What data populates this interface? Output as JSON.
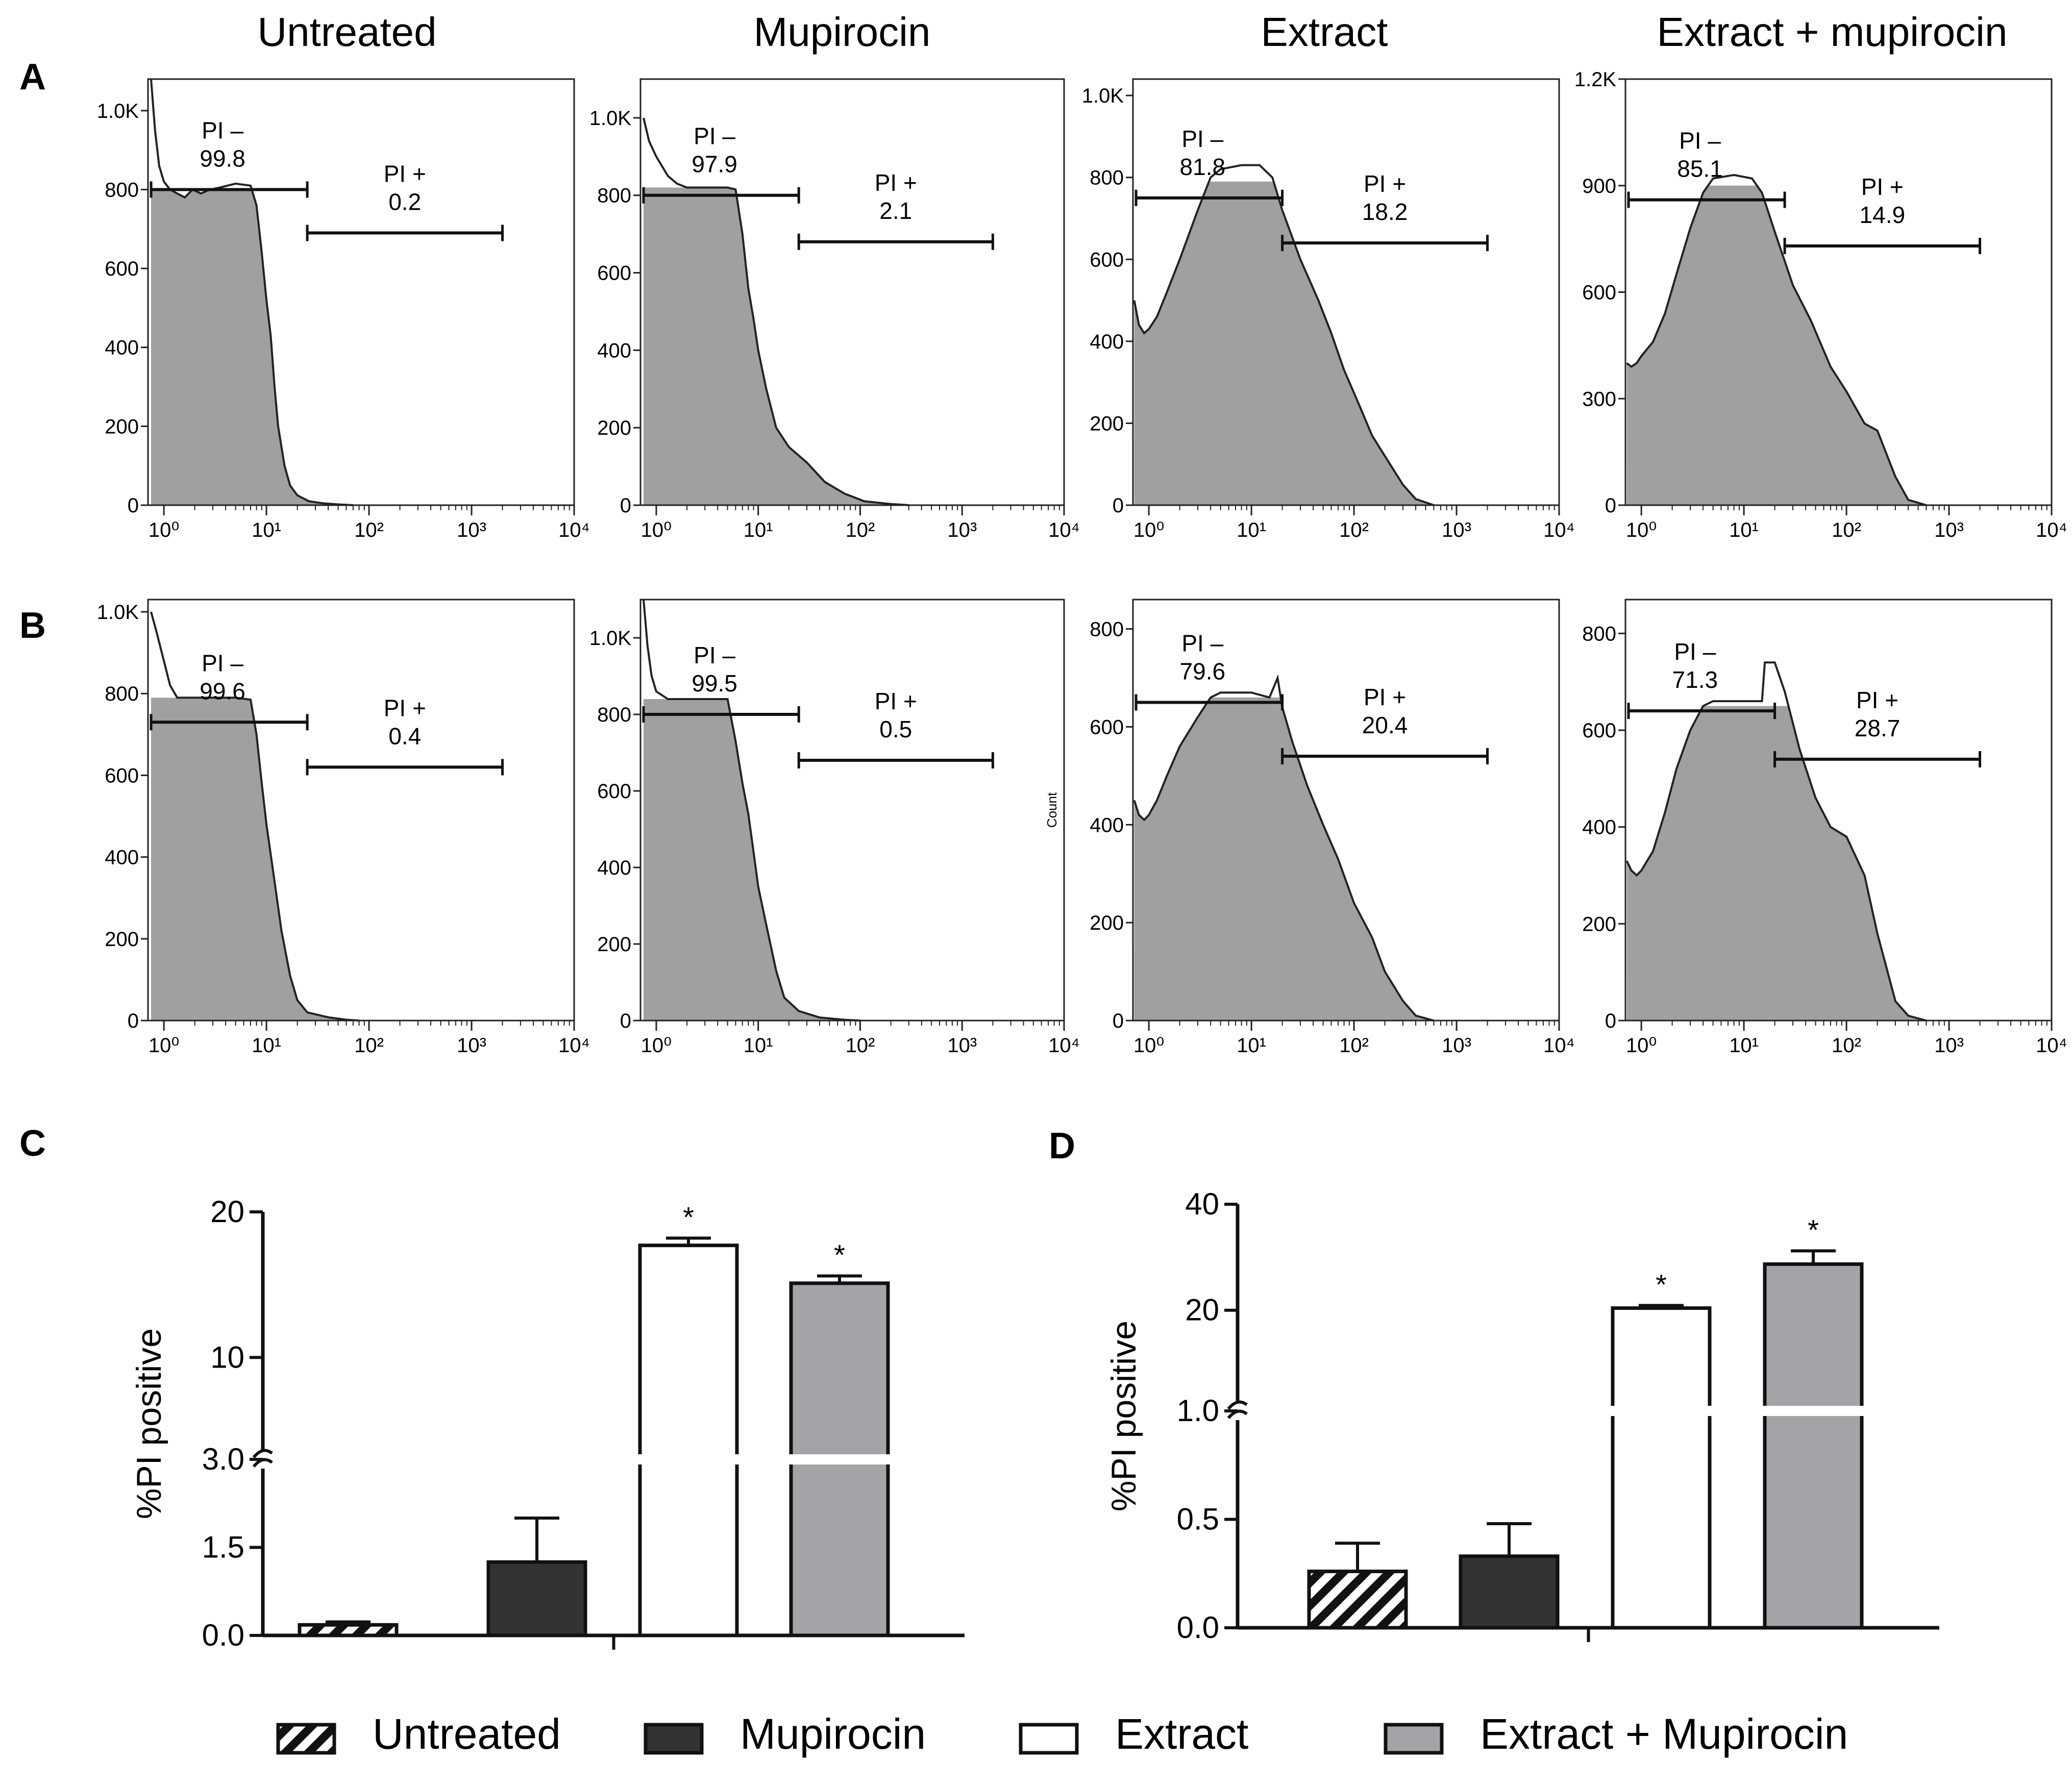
{
  "figure": {
    "panel_letters": [
      "A",
      "B",
      "C",
      "D"
    ],
    "column_titles": [
      "Untreated",
      "Mupirocin",
      "Extract",
      "Extract + mupirocin"
    ],
    "gate_labels": {
      "negative": "PI –",
      "positive": "PI +"
    },
    "count_label": "Count",
    "colors": {
      "fill": "#a0a0a0",
      "line": "#222222",
      "frame": "#222222",
      "dark_bar": "#333333",
      "gray_bar": "#a3a3a8"
    }
  },
  "chart_data": [
    {
      "id": "A",
      "type": "area",
      "row": 0,
      "col": 0,
      "title": "Untreated",
      "xscale": "log",
      "xlim": [
        0.7,
        10000
      ],
      "xticks": [
        1,
        10,
        100,
        1000,
        10000
      ],
      "xtick_labels": [
        "10⁰",
        "10¹",
        "10²",
        "10³",
        "10⁴"
      ],
      "ylim": [
        0,
        1080
      ],
      "yticks": [
        0,
        200,
        400,
        600,
        800,
        1000
      ],
      "ytick_labels": [
        "0",
        "200",
        "400",
        "600",
        "800",
        "1.0K"
      ],
      "clip": 800,
      "profile": [
        [
          0.75,
          1100
        ],
        [
          0.82,
          950
        ],
        [
          0.9,
          860
        ],
        [
          1,
          820
        ],
        [
          1.15,
          800
        ],
        [
          1.35,
          790
        ],
        [
          1.6,
          780
        ],
        [
          1.9,
          800
        ],
        [
          2.3,
          790
        ],
        [
          2.8,
          800
        ],
        [
          3.5,
          805
        ],
        [
          5,
          815
        ],
        [
          7,
          810
        ],
        [
          8,
          760
        ],
        [
          9,
          640
        ],
        [
          10,
          520
        ],
        [
          11,
          430
        ],
        [
          12,
          300
        ],
        [
          13,
          200
        ],
        [
          15,
          100
        ],
        [
          17,
          50
        ],
        [
          20,
          25
        ],
        [
          26,
          10
        ],
        [
          35,
          5
        ],
        [
          50,
          2
        ],
        [
          70,
          0
        ]
      ],
      "gate_neg": {
        "label": "PI –",
        "value": "99.8",
        "x_from": 0.75,
        "x_to": 25,
        "y": 800
      },
      "gate_pos": {
        "label": "PI +",
        "value": "0.2",
        "x_from": 25,
        "x_to": 2000,
        "y": 690
      }
    },
    {
      "id": "A",
      "type": "area",
      "row": 0,
      "col": 1,
      "title": "Mupirocin",
      "xscale": "log",
      "xlim": [
        0.7,
        10000
      ],
      "xticks": [
        1,
        10,
        100,
        1000,
        10000
      ],
      "xtick_labels": [
        "10⁰",
        "10¹",
        "10²",
        "10³",
        "10⁴"
      ],
      "ylim": [
        0,
        1100
      ],
      "yticks": [
        0,
        200,
        400,
        600,
        800,
        1000
      ],
      "ytick_labels": [
        "0",
        "200",
        "400",
        "600",
        "800",
        "1.0K"
      ],
      "clip": 820,
      "profile": [
        [
          0.75,
          1000
        ],
        [
          0.85,
          940
        ],
        [
          1,
          900
        ],
        [
          1.3,
          850
        ],
        [
          1.6,
          830
        ],
        [
          2,
          820
        ],
        [
          3,
          820
        ],
        [
          5,
          820
        ],
        [
          6,
          815
        ],
        [
          7,
          700
        ],
        [
          8,
          560
        ],
        [
          9,
          480
        ],
        [
          10,
          400
        ],
        [
          12,
          300
        ],
        [
          15,
          200
        ],
        [
          20,
          150
        ],
        [
          30,
          110
        ],
        [
          45,
          60
        ],
        [
          70,
          30
        ],
        [
          110,
          10
        ],
        [
          200,
          3
        ],
        [
          300,
          0
        ]
      ],
      "gate_neg": {
        "label": "PI –",
        "value": "97.9",
        "x_from": 0.75,
        "x_to": 25,
        "y": 800
      },
      "gate_pos": {
        "label": "PI +",
        "value": "2.1",
        "x_from": 25,
        "x_to": 2000,
        "y": 680
      }
    },
    {
      "id": "A",
      "type": "area",
      "row": 0,
      "col": 2,
      "title": "Extract",
      "xscale": "log",
      "xlim": [
        0.7,
        10000
      ],
      "xticks": [
        1,
        10,
        100,
        1000,
        10000
      ],
      "xtick_labels": [
        "10⁰",
        "10¹",
        "10²",
        "10³",
        "10⁴"
      ],
      "ylim": [
        0,
        1040
      ],
      "yticks": [
        0,
        200,
        400,
        600,
        800,
        1000
      ],
      "ytick_labels": [
        "0",
        "200",
        "400",
        "600",
        "800",
        "1.0K"
      ],
      "clip": 790,
      "profile": [
        [
          0.72,
          500
        ],
        [
          0.8,
          440
        ],
        [
          0.9,
          420
        ],
        [
          1,
          430
        ],
        [
          1.2,
          460
        ],
        [
          1.5,
          520
        ],
        [
          2,
          600
        ],
        [
          3,
          720
        ],
        [
          4,
          800
        ],
        [
          5,
          820
        ],
        [
          8,
          830
        ],
        [
          12,
          830
        ],
        [
          16,
          800
        ],
        [
          20,
          720
        ],
        [
          30,
          600
        ],
        [
          45,
          500
        ],
        [
          60,
          420
        ],
        [
          80,
          330
        ],
        [
          110,
          250
        ],
        [
          150,
          170
        ],
        [
          200,
          120
        ],
        [
          300,
          50
        ],
        [
          400,
          15
        ],
        [
          600,
          0
        ]
      ],
      "gate_neg": {
        "label": "PI –",
        "value": "81.8",
        "x_from": 0.75,
        "x_to": 20,
        "y": 750
      },
      "gate_pos": {
        "label": "PI +",
        "value": "18.2",
        "x_from": 20,
        "x_to": 2000,
        "y": 640
      }
    },
    {
      "id": "A",
      "type": "area",
      "row": 0,
      "col": 3,
      "title": "Extract + mupirocin",
      "xscale": "log",
      "xlim": [
        0.7,
        10000
      ],
      "xticks": [
        1,
        10,
        100,
        1000,
        10000
      ],
      "xtick_labels": [
        "10⁰",
        "10¹",
        "10²",
        "10³",
        "10⁴"
      ],
      "ylim": [
        0,
        1200
      ],
      "yticks": [
        0,
        300,
        600,
        900,
        1200
      ],
      "ytick_labels": [
        "0",
        "300",
        "600",
        "900",
        "1.2K"
      ],
      "clip": 900,
      "profile": [
        [
          0.72,
          400
        ],
        [
          0.8,
          390
        ],
        [
          0.9,
          400
        ],
        [
          1,
          420
        ],
        [
          1.3,
          460
        ],
        [
          1.7,
          540
        ],
        [
          2.2,
          650
        ],
        [
          3,
          780
        ],
        [
          4,
          880
        ],
        [
          5,
          920
        ],
        [
          8,
          930
        ],
        [
          12,
          920
        ],
        [
          15,
          880
        ],
        [
          20,
          770
        ],
        [
          30,
          620
        ],
        [
          45,
          520
        ],
        [
          70,
          390
        ],
        [
          100,
          320
        ],
        [
          150,
          230
        ],
        [
          200,
          210
        ],
        [
          300,
          80
        ],
        [
          400,
          15
        ],
        [
          600,
          0
        ]
      ],
      "gate_neg": {
        "label": "PI –",
        "value": "85.1",
        "x_from": 0.75,
        "x_to": 25,
        "y": 860
      },
      "gate_pos": {
        "label": "PI +",
        "value": "14.9",
        "x_from": 25,
        "x_to": 2000,
        "y": 730
      }
    },
    {
      "id": "B",
      "type": "area",
      "row": 1,
      "col": 0,
      "title": "Untreated",
      "xscale": "log",
      "xlim": [
        0.7,
        10000
      ],
      "xticks": [
        1,
        10,
        100,
        1000,
        10000
      ],
      "xtick_labels": [
        "10⁰",
        "10¹",
        "10²",
        "10³",
        "10⁴"
      ],
      "ylim": [
        0,
        1030
      ],
      "yticks": [
        0,
        200,
        400,
        600,
        800,
        1000
      ],
      "ytick_labels": [
        "0",
        "200",
        "400",
        "600",
        "800",
        "1.0K"
      ],
      "clip": 790,
      "profile": [
        [
          0.75,
          1000
        ],
        [
          0.85,
          950
        ],
        [
          1,
          880
        ],
        [
          1.15,
          820
        ],
        [
          1.35,
          790
        ],
        [
          2,
          790
        ],
        [
          5,
          790
        ],
        [
          7,
          785
        ],
        [
          8,
          700
        ],
        [
          9,
          580
        ],
        [
          10,
          480
        ],
        [
          12,
          340
        ],
        [
          14,
          220
        ],
        [
          17,
          110
        ],
        [
          20,
          50
        ],
        [
          25,
          20
        ],
        [
          40,
          8
        ],
        [
          60,
          2
        ],
        [
          80,
          0
        ]
      ],
      "gate_neg": {
        "label": "PI –",
        "value": "99.6",
        "x_from": 0.75,
        "x_to": 25,
        "y": 730
      },
      "gate_pos": {
        "label": "PI +",
        "value": "0.4",
        "x_from": 25,
        "x_to": 2000,
        "y": 620
      }
    },
    {
      "id": "B",
      "type": "area",
      "row": 1,
      "col": 1,
      "title": "Mupirocin",
      "xscale": "log",
      "xlim": [
        0.7,
        10000
      ],
      "xticks": [
        1,
        10,
        100,
        1000,
        10000
      ],
      "xtick_labels": [
        "10⁰",
        "10¹",
        "10²",
        "10³",
        "10⁴"
      ],
      "ylim": [
        0,
        1100
      ],
      "yticks": [
        0,
        200,
        400,
        600,
        800,
        1000
      ],
      "ytick_labels": [
        "0",
        "200",
        "400",
        "600",
        "800",
        "1.0K"
      ],
      "clip": 840,
      "profile": [
        [
          0.75,
          1100
        ],
        [
          0.82,
          980
        ],
        [
          0.9,
          900
        ],
        [
          1,
          860
        ],
        [
          1.3,
          840
        ],
        [
          2,
          840
        ],
        [
          4,
          840
        ],
        [
          5,
          840
        ],
        [
          6,
          730
        ],
        [
          7,
          620
        ],
        [
          8,
          540
        ],
        [
          9,
          440
        ],
        [
          10,
          350
        ],
        [
          12,
          250
        ],
        [
          15,
          130
        ],
        [
          18,
          60
        ],
        [
          25,
          25
        ],
        [
          40,
          8
        ],
        [
          70,
          2
        ],
        [
          100,
          0
        ]
      ],
      "gate_neg": {
        "label": "PI –",
        "value": "99.5",
        "x_from": 0.75,
        "x_to": 25,
        "y": 800
      },
      "gate_pos": {
        "label": "PI +",
        "value": "0.5",
        "x_from": 25,
        "x_to": 2000,
        "y": 680
      }
    },
    {
      "id": "B",
      "type": "area",
      "row": 1,
      "col": 2,
      "title": "Extract",
      "xscale": "log",
      "xlim": [
        0.7,
        10000
      ],
      "xticks": [
        1,
        10,
        100,
        1000,
        10000
      ],
      "xtick_labels": [
        "10⁰",
        "10¹",
        "10²",
        "10³",
        "10⁴"
      ],
      "ylim": [
        0,
        860
      ],
      "yticks": [
        0,
        200,
        400,
        600,
        800
      ],
      "ytick_labels": [
        "0",
        "200",
        "400",
        "600",
        "800"
      ],
      "clip": 660,
      "profile": [
        [
          0.72,
          450
        ],
        [
          0.8,
          420
        ],
        [
          0.9,
          410
        ],
        [
          1,
          420
        ],
        [
          1.2,
          450
        ],
        [
          1.5,
          500
        ],
        [
          2,
          560
        ],
        [
          3,
          620
        ],
        [
          4,
          660
        ],
        [
          5,
          670
        ],
        [
          10,
          670
        ],
        [
          15,
          660
        ],
        [
          18,
          700
        ],
        [
          20,
          640
        ],
        [
          25,
          570
        ],
        [
          35,
          480
        ],
        [
          50,
          400
        ],
        [
          70,
          330
        ],
        [
          100,
          240
        ],
        [
          150,
          170
        ],
        [
          200,
          100
        ],
        [
          300,
          40
        ],
        [
          400,
          10
        ],
        [
          600,
          0
        ]
      ],
      "gate_neg": {
        "label": "PI –",
        "value": "79.6",
        "x_from": 0.75,
        "x_to": 20,
        "y": 650
      },
      "gate_pos": {
        "label": "PI +",
        "value": "20.4",
        "x_from": 20,
        "x_to": 2000,
        "y": 540
      },
      "ylabel": "Count"
    },
    {
      "id": "B",
      "type": "area",
      "row": 1,
      "col": 3,
      "title": "Extract + mupirocin",
      "xscale": "log",
      "xlim": [
        0.7,
        10000
      ],
      "xticks": [
        1,
        10,
        100,
        1000,
        10000
      ],
      "xtick_labels": [
        "10⁰",
        "10¹",
        "10²",
        "10³",
        "10⁴"
      ],
      "ylim": [
        0,
        870
      ],
      "yticks": [
        0,
        200,
        400,
        600,
        800
      ],
      "ytick_labels": [
        "0",
        "200",
        "400",
        "600",
        "800"
      ],
      "clip": 650,
      "profile": [
        [
          0.72,
          330
        ],
        [
          0.8,
          310
        ],
        [
          0.9,
          300
        ],
        [
          1,
          310
        ],
        [
          1.3,
          350
        ],
        [
          1.7,
          430
        ],
        [
          2.2,
          520
        ],
        [
          3,
          600
        ],
        [
          4,
          650
        ],
        [
          5,
          660
        ],
        [
          10,
          660
        ],
        [
          15,
          660
        ],
        [
          16,
          740
        ],
        [
          20,
          740
        ],
        [
          25,
          680
        ],
        [
          35,
          560
        ],
        [
          50,
          460
        ],
        [
          70,
          400
        ],
        [
          100,
          380
        ],
        [
          150,
          300
        ],
        [
          200,
          180
        ],
        [
          300,
          40
        ],
        [
          400,
          10
        ],
        [
          600,
          0
        ]
      ],
      "gate_neg": {
        "label": "PI –",
        "value": "71.3",
        "x_from": 0.75,
        "x_to": 20,
        "y": 640
      },
      "gate_pos": {
        "label": "PI +",
        "value": "28.7",
        "x_from": 20,
        "x_to": 2000,
        "y": 540
      }
    },
    {
      "id": "C",
      "type": "bar",
      "ylabel": "%PI positive",
      "categories": [
        "Untreated",
        "Mupirocin",
        "Extract",
        "Extract + Mupirocin"
      ],
      "values": [
        0.18,
        1.25,
        17.7,
        15.1
      ],
      "errors": [
        0.05,
        0.75,
        0.5,
        0.5
      ],
      "significant": [
        false,
        false,
        true,
        true
      ],
      "marker": "*",
      "axis_break": {
        "lower": [
          0,
          3.0
        ],
        "upper": [
          3.0,
          20
        ]
      },
      "yticks": [
        0.0,
        1.5,
        3.0,
        10,
        20
      ],
      "ytick_labels": [
        "0.0",
        "1.5",
        "3.0",
        "10",
        "20"
      ]
    },
    {
      "id": "D",
      "type": "bar",
      "ylabel": "%PI positive",
      "categories": [
        "Untreated",
        "Mupirocin",
        "Extract",
        "Extract + Mupirocin"
      ],
      "values": [
        0.26,
        0.33,
        20.4,
        28.7
      ],
      "errors": [
        0.13,
        0.15,
        0.5,
        2.5
      ],
      "significant": [
        false,
        false,
        true,
        true
      ],
      "marker": "*",
      "axis_break": {
        "lower": [
          0,
          1.0
        ],
        "upper": [
          1.0,
          40
        ]
      },
      "yticks": [
        0.0,
        0.5,
        1.0,
        20,
        40
      ],
      "ytick_labels": [
        "0.0",
        "0.5",
        "1.0",
        "20",
        "40"
      ]
    }
  ],
  "legend": {
    "items": [
      {
        "label": "Untreated",
        "pattern": "hatch"
      },
      {
        "label": "Mupirocin",
        "color": "#333333"
      },
      {
        "label": "Extract",
        "color": "#ffffff"
      },
      {
        "label": "Extract + Mupirocin",
        "color": "#a3a3a8"
      }
    ]
  }
}
